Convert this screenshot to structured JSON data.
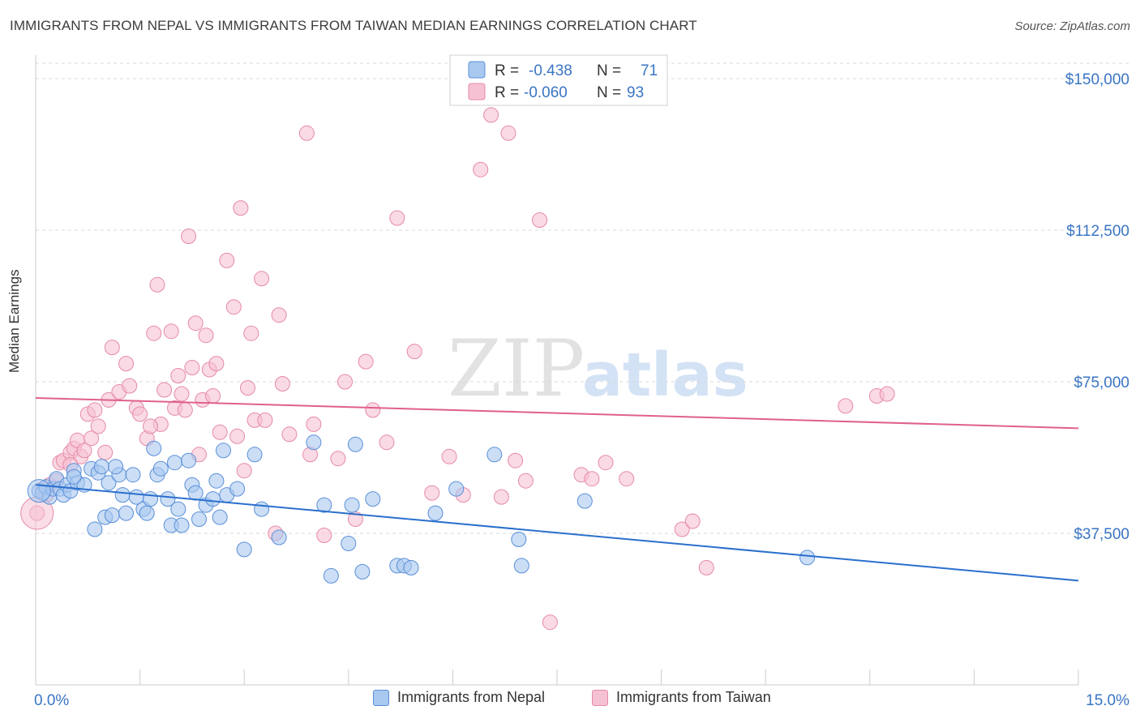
{
  "header": {
    "title": "IMMIGRANTS FROM NEPAL VS IMMIGRANTS FROM TAIWAN MEDIAN EARNINGS CORRELATION CHART",
    "source": "Source: ZipAtlas.com"
  },
  "watermark": {
    "zip": "ZIP",
    "atlas": "atlas"
  },
  "colors": {
    "nepal_fill": "#a8c8f0",
    "nepal_stroke": "#5a8fd8",
    "nepal_line": "#2a6fcc",
    "taiwan_fill": "#f6c1d2",
    "taiwan_stroke": "#e58aa8",
    "taiwan_line": "#e0608a",
    "axis_label": "#3a75c4",
    "grid": "#d8d8d8"
  },
  "legend_top": {
    "rows": [
      {
        "r_label": "R =",
        "r_value": "-0.438",
        "n_label": "N =",
        "n_value": "71"
      },
      {
        "r_label": "R =",
        "r_value": "-0.060",
        "n_label": "N =",
        "n_value": "93"
      }
    ]
  },
  "legend_bottom": {
    "items": [
      "Immigrants from Nepal",
      "Immigrants from Taiwan"
    ]
  },
  "chart_data": {
    "type": "scatter",
    "title": "IMMIGRANTS FROM NEPAL VS IMMIGRANTS FROM TAIWAN MEDIAN EARNINGS CORRELATION CHART",
    "xlabel": "",
    "ylabel": "Median Earnings",
    "xlim": [
      0,
      15
    ],
    "ylim": [
      0,
      155000
    ],
    "x_tick_labels": [
      "0.0%",
      "15.0%"
    ],
    "y_ticks": [
      37500,
      75000,
      112500,
      150000
    ],
    "y_tick_labels": [
      "$37,500",
      "$75,000",
      "$112,500",
      "$150,000"
    ],
    "grid": true,
    "legend_position": "top-center",
    "series": [
      {
        "name": "Immigrants from Nepal",
        "trend": {
          "x": [
            0,
            15
          ],
          "y": [
            49500,
            25800
          ]
        },
        "points": [
          [
            0.05,
            48000
          ],
          [
            0.1,
            47500
          ],
          [
            0.15,
            49000
          ],
          [
            0.2,
            46500
          ],
          [
            0.25,
            48500
          ],
          [
            0.3,
            51000
          ],
          [
            0.35,
            48500
          ],
          [
            0.4,
            47000
          ],
          [
            0.45,
            49500
          ],
          [
            0.5,
            48000
          ],
          [
            0.55,
            53000
          ],
          [
            0.6,
            50000
          ],
          [
            0.7,
            49500
          ],
          [
            0.8,
            53500
          ],
          [
            0.85,
            38500
          ],
          [
            0.9,
            52500
          ],
          [
            0.95,
            54000
          ],
          [
            1.0,
            41500
          ],
          [
            1.05,
            50000
          ],
          [
            1.1,
            42000
          ],
          [
            1.2,
            52000
          ],
          [
            1.25,
            47000
          ],
          [
            1.3,
            42500
          ],
          [
            1.4,
            52000
          ],
          [
            1.45,
            46500
          ],
          [
            1.55,
            43500
          ],
          [
            1.6,
            42500
          ],
          [
            1.65,
            46000
          ],
          [
            1.7,
            58500
          ],
          [
            1.75,
            52000
          ],
          [
            1.8,
            53500
          ],
          [
            1.9,
            46000
          ],
          [
            1.95,
            39500
          ],
          [
            2.0,
            55000
          ],
          [
            2.05,
            43500
          ],
          [
            2.1,
            39500
          ],
          [
            2.2,
            55500
          ],
          [
            2.25,
            49500
          ],
          [
            2.3,
            47500
          ],
          [
            2.35,
            41000
          ],
          [
            2.45,
            44500
          ],
          [
            2.55,
            46000
          ],
          [
            2.6,
            50500
          ],
          [
            2.65,
            41500
          ],
          [
            2.7,
            58000
          ],
          [
            2.75,
            47000
          ],
          [
            2.9,
            48500
          ],
          [
            3.0,
            33500
          ],
          [
            3.15,
            57000
          ],
          [
            3.25,
            43500
          ],
          [
            3.5,
            36500
          ],
          [
            4.0,
            60000
          ],
          [
            4.15,
            44500
          ],
          [
            4.25,
            27000
          ],
          [
            4.5,
            35000
          ],
          [
            4.55,
            44500
          ],
          [
            4.6,
            59500
          ],
          [
            4.7,
            28000
          ],
          [
            4.85,
            46000
          ],
          [
            5.2,
            29500
          ],
          [
            5.3,
            29500
          ],
          [
            5.4,
            29000
          ],
          [
            5.75,
            42500
          ],
          [
            6.05,
            48500
          ],
          [
            6.6,
            57000
          ],
          [
            6.95,
            36000
          ],
          [
            6.99,
            29500
          ],
          [
            7.9,
            45500
          ],
          [
            11.1,
            31500
          ],
          [
            0.55,
            51500
          ],
          [
            1.15,
            54000
          ]
        ]
      },
      {
        "name": "Immigrants from Taiwan",
        "trend": {
          "x": [
            0,
            15
          ],
          "y": [
            71000,
            63500
          ]
        },
        "points": [
          [
            0.02,
            42500
          ],
          [
            0.1,
            48500
          ],
          [
            0.15,
            47000
          ],
          [
            0.2,
            49500
          ],
          [
            0.3,
            50500
          ],
          [
            0.35,
            55000
          ],
          [
            0.4,
            55500
          ],
          [
            0.5,
            57500
          ],
          [
            0.55,
            58500
          ],
          [
            0.6,
            60500
          ],
          [
            0.65,
            56500
          ],
          [
            0.7,
            58000
          ],
          [
            0.75,
            67000
          ],
          [
            0.8,
            61000
          ],
          [
            0.85,
            68000
          ],
          [
            0.9,
            64000
          ],
          [
            1.0,
            57500
          ],
          [
            1.05,
            70500
          ],
          [
            1.1,
            83500
          ],
          [
            1.2,
            72500
          ],
          [
            1.3,
            79500
          ],
          [
            1.35,
            74000
          ],
          [
            1.45,
            68500
          ],
          [
            1.5,
            67000
          ],
          [
            1.6,
            61000
          ],
          [
            1.7,
            87000
          ],
          [
            1.75,
            99000
          ],
          [
            1.8,
            64500
          ],
          [
            1.85,
            73000
          ],
          [
            1.95,
            87500
          ],
          [
            2.0,
            68500
          ],
          [
            2.05,
            76500
          ],
          [
            2.1,
            72000
          ],
          [
            2.15,
            68000
          ],
          [
            2.2,
            111000
          ],
          [
            2.25,
            78500
          ],
          [
            2.3,
            89500
          ],
          [
            2.35,
            57000
          ],
          [
            2.4,
            70500
          ],
          [
            2.45,
            86500
          ],
          [
            2.5,
            78000
          ],
          [
            2.55,
            71500
          ],
          [
            2.6,
            79500
          ],
          [
            2.65,
            62500
          ],
          [
            2.75,
            105000
          ],
          [
            2.85,
            93500
          ],
          [
            2.95,
            118000
          ],
          [
            3.0,
            53000
          ],
          [
            3.05,
            73500
          ],
          [
            3.1,
            87000
          ],
          [
            3.15,
            65500
          ],
          [
            3.25,
            100500
          ],
          [
            3.3,
            65500
          ],
          [
            3.45,
            37500
          ],
          [
            3.5,
            91500
          ],
          [
            3.55,
            74500
          ],
          [
            3.65,
            62000
          ],
          [
            3.9,
            136500
          ],
          [
            3.95,
            57000
          ],
          [
            4.0,
            64500
          ],
          [
            4.15,
            37000
          ],
          [
            4.35,
            56000
          ],
          [
            4.45,
            75000
          ],
          [
            4.6,
            41000
          ],
          [
            4.75,
            80000
          ],
          [
            4.85,
            68000
          ],
          [
            5.05,
            60000
          ],
          [
            5.2,
            115500
          ],
          [
            5.45,
            82500
          ],
          [
            5.7,
            47500
          ],
          [
            5.95,
            56500
          ],
          [
            6.15,
            47000
          ],
          [
            6.4,
            127500
          ],
          [
            6.55,
            141000
          ],
          [
            6.7,
            46500
          ],
          [
            6.8,
            136500
          ],
          [
            6.9,
            55500
          ],
          [
            7.05,
            50500
          ],
          [
            7.25,
            115000
          ],
          [
            7.4,
            15500
          ],
          [
            7.85,
            52000
          ],
          [
            8.0,
            51000
          ],
          [
            8.2,
            55000
          ],
          [
            8.5,
            51000
          ],
          [
            9.3,
            38500
          ],
          [
            9.45,
            40500
          ],
          [
            9.65,
            29000
          ],
          [
            11.65,
            69000
          ],
          [
            12.1,
            71500
          ],
          [
            12.25,
            72000
          ],
          [
            0.5,
            54500
          ],
          [
            1.65,
            64000
          ],
          [
            2.9,
            61500
          ]
        ]
      }
    ]
  }
}
